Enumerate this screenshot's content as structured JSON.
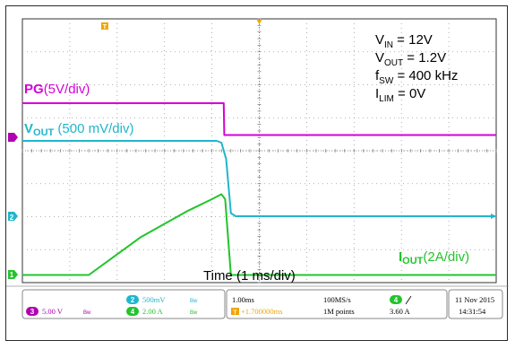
{
  "chart_data": {
    "type": "line",
    "x_unit": "ms",
    "xlim": [
      0,
      10
    ],
    "time_label": "Time (1 ms/div)",
    "conditions": [
      {
        "sym": "V",
        "sub": "IN",
        "value": "= 12V"
      },
      {
        "sym": "V",
        "sub": "OUT",
        "value": "= 1.2V"
      },
      {
        "sym": "f",
        "sub": "SW",
        "value": "= 400 kHz"
      },
      {
        "sym": "I",
        "sub": "LIM",
        "value": "= 0V"
      }
    ],
    "series": [
      {
        "name": "PG",
        "label_main": "PG",
        "label_scale": "(5V/div)",
        "color": "#d600d6",
        "unit": "V",
        "x": [
          0,
          4.25,
          4.26,
          10
        ],
        "y": [
          5,
          5,
          0,
          0
        ]
      },
      {
        "name": "VOUT",
        "label_main": "V",
        "label_sub": "OUT",
        "label_scale": "(500 mV/div)",
        "color": "#1fb6cc",
        "unit": "V",
        "x": [
          0,
          4.1,
          4.2,
          4.3,
          4.4,
          4.5,
          10
        ],
        "y": [
          1.2,
          1.2,
          1.17,
          0.9,
          0.0,
          -0.05,
          -0.05
        ]
      },
      {
        "name": "IOUT",
        "label_main": "I",
        "label_sub": "OUT",
        "label_scale": "(2A/div)",
        "color": "#22c42b",
        "unit": "A",
        "x": [
          0,
          1.4,
          2.5,
          3.5,
          4.0,
          4.2,
          4.28,
          4.4,
          4.5,
          10
        ],
        "y": [
          0,
          0,
          2.3,
          3.9,
          4.6,
          4.9,
          4.6,
          0.0,
          0.0,
          0.0
        ]
      }
    ]
  },
  "status_bar": {
    "ch3": {
      "num": "3",
      "scale": "5.00 V"
    },
    "ch2": {
      "num": "2",
      "scale": "500mV"
    },
    "ch4": {
      "num": "4",
      "scale": "2.00 A"
    },
    "timebase": "1.00ms",
    "trigger_pos": "+1.700000ms",
    "sample_rate": "100MS/s",
    "points": "1M points",
    "trig_ch": "4",
    "trig_level": "3.60 A",
    "date": "11 Nov 2015",
    "time": "14:31:54"
  },
  "markers": {
    "ch1": "1",
    "ch2": "2",
    "trigger": "T"
  }
}
